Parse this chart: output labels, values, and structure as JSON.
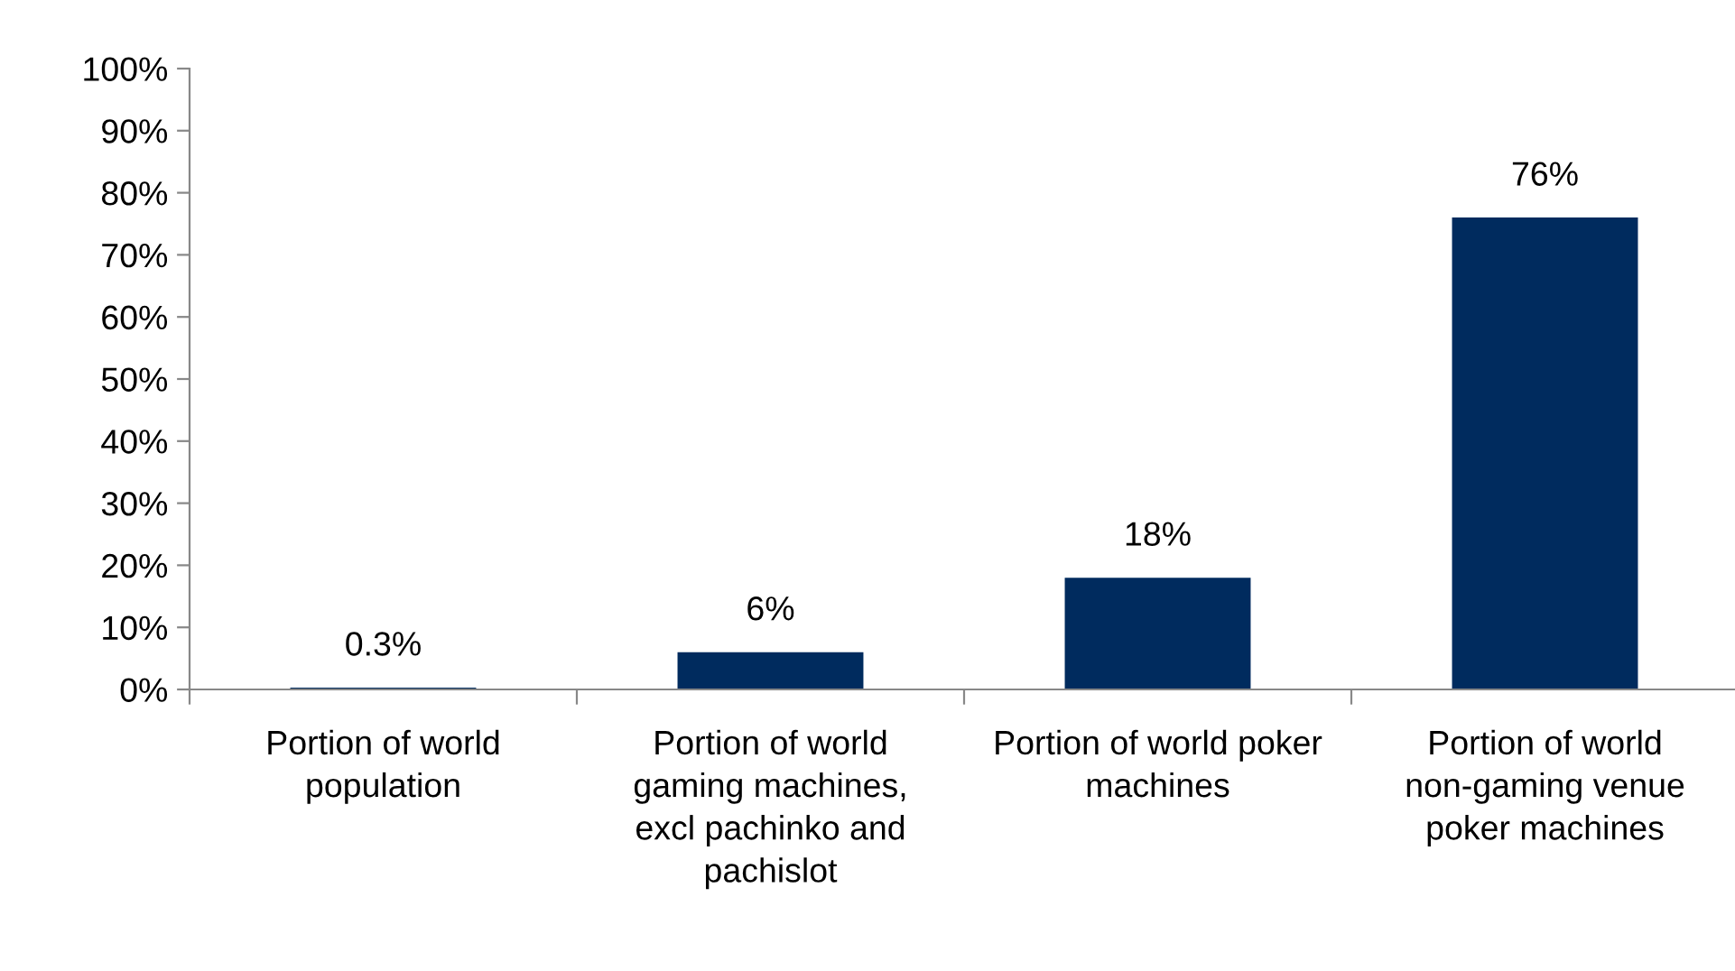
{
  "chart_data": {
    "type": "bar",
    "categories": [
      "Portion of world population",
      "Portion of world gaming machines, excl pachinko and pachislot",
      "Portion of world poker machines",
      "Portion of world non-gaming venue poker machines"
    ],
    "values": [
      0.3,
      6,
      18,
      76
    ],
    "color": "#002b5e",
    "value_labels": [
      "0.3%",
      "6%",
      "18%",
      "76%"
    ],
    "ylim": [
      0,
      100
    ],
    "yticks": [
      {
        "value": 0,
        "label": "0%"
      },
      {
        "value": 10,
        "label": "10%"
      },
      {
        "value": 20,
        "label": "20%"
      },
      {
        "value": 30,
        "label": "30%"
      },
      {
        "value": 40,
        "label": "40%"
      },
      {
        "value": 50,
        "label": "50%"
      },
      {
        "value": 60,
        "label": "60%"
      },
      {
        "value": 70,
        "label": "70%"
      },
      {
        "value": 80,
        "label": "80%"
      },
      {
        "value": 90,
        "label": "90%"
      },
      {
        "value": 100,
        "label": "100%"
      }
    ],
    "grid": false,
    "legend": false
  }
}
